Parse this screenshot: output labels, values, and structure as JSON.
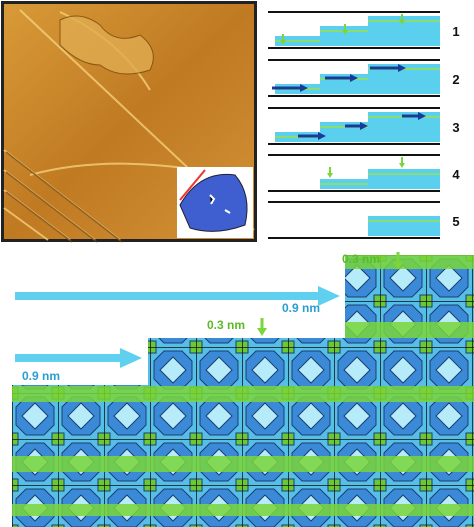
{
  "step_labels": [
    "1",
    "2",
    "3",
    "4",
    "5"
  ],
  "lattice": {
    "upper_step_height": "0.3 nm",
    "middle_step_height": "0.3 nm",
    "upper_terrace_width": "0.9 nm",
    "lower_terrace_width": "0.9 nm"
  }
}
